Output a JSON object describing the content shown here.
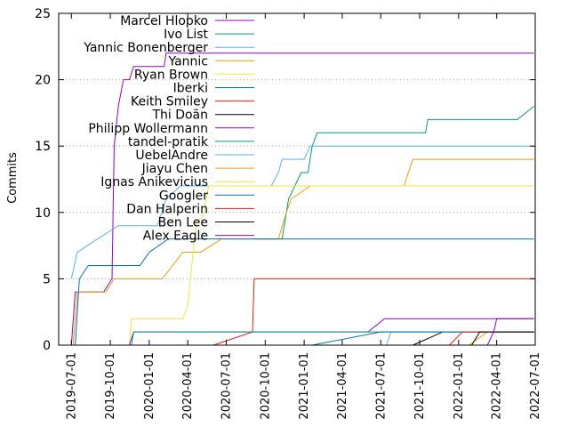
{
  "chart_data": {
    "type": "line",
    "ylabel": "Commits",
    "ylim": [
      0,
      25
    ],
    "yticks": [
      0,
      5,
      10,
      15,
      20,
      25
    ],
    "xlim": [
      "2019-06-01",
      "2022-07-01"
    ],
    "xticks": [
      "2019-07-01",
      "2019-10-01",
      "2020-01-01",
      "2020-04-01",
      "2020-07-01",
      "2020-10-01",
      "2021-01-01",
      "2021-04-01",
      "2021-07-01",
      "2021-10-01",
      "2022-01-01",
      "2022-04-01",
      "2022-07-01"
    ],
    "grid": "y-dotted",
    "legend_position": "top-left",
    "series": [
      {
        "name": "Marcel Hlopko",
        "color": "#9400d3",
        "points": [
          [
            "2019-07-01",
            0
          ],
          [
            "2019-07-10",
            4
          ],
          [
            "2019-09-15",
            4
          ],
          [
            "2019-10-05",
            5
          ],
          [
            "2019-10-10",
            15
          ],
          [
            "2019-10-20",
            18
          ],
          [
            "2019-11-01",
            20
          ],
          [
            "2019-11-15",
            20
          ],
          [
            "2019-11-25",
            21
          ],
          [
            "2020-01-01",
            21
          ],
          [
            "2020-02-05",
            21
          ],
          [
            "2020-02-10",
            22
          ],
          [
            "2022-06-28",
            22
          ]
        ]
      },
      {
        "name": "Ivo List",
        "color": "#009e73",
        "points": [
          [
            "2020-09-05",
            8
          ],
          [
            "2020-11-10",
            8
          ],
          [
            "2020-11-25",
            11
          ],
          [
            "2020-12-10",
            12
          ],
          [
            "2020-12-25",
            13
          ],
          [
            "2021-01-10",
            13
          ],
          [
            "2021-01-20",
            15
          ],
          [
            "2021-02-01",
            16
          ],
          [
            "2021-10-15",
            16
          ],
          [
            "2021-10-20",
            17
          ],
          [
            "2022-05-20",
            17
          ],
          [
            "2022-06-28",
            18
          ]
        ]
      },
      {
        "name": "Yannic Bonenberger",
        "color": "#56b4e9",
        "points": [
          [
            "2019-07-01",
            5
          ],
          [
            "2019-07-15",
            7
          ],
          [
            "2019-09-01",
            8
          ],
          [
            "2019-10-20",
            9
          ],
          [
            "2020-01-20",
            9
          ],
          [
            "2020-02-10",
            11
          ],
          [
            "2020-03-15",
            12
          ],
          [
            "2020-06-01",
            12
          ],
          [
            "2020-10-15",
            12
          ],
          [
            "2020-11-01",
            13
          ],
          [
            "2020-11-10",
            14
          ],
          [
            "2021-01-01",
            14
          ],
          [
            "2021-01-15",
            15
          ],
          [
            "2022-06-28",
            15
          ]
        ]
      },
      {
        "name": "Yannic",
        "color": "#e69f00",
        "points": [
          [
            "2019-07-05",
            0
          ],
          [
            "2019-07-15",
            4
          ],
          [
            "2019-09-20",
            4
          ],
          [
            "2019-10-10",
            5
          ],
          [
            "2020-02-01",
            5
          ],
          [
            "2020-03-20",
            7
          ],
          [
            "2020-05-01",
            7
          ],
          [
            "2020-06-20",
            8
          ],
          [
            "2020-11-01",
            8
          ],
          [
            "2020-11-20",
            10
          ],
          [
            "2020-12-01",
            11
          ],
          [
            "2021-01-15",
            12
          ],
          [
            "2021-08-25",
            12
          ],
          [
            "2021-09-15",
            14
          ],
          [
            "2022-06-28",
            14
          ]
        ]
      },
      {
        "name": "Ryan Brown",
        "color": "#f0e442",
        "points": [
          [
            "2019-11-15",
            0
          ],
          [
            "2019-11-20",
            2
          ],
          [
            "2020-03-20",
            2
          ],
          [
            "2020-04-01",
            3
          ],
          [
            "2020-04-20",
            9
          ],
          [
            "2020-05-10",
            10
          ],
          [
            "2020-05-20",
            12
          ],
          [
            "2022-06-28",
            12
          ]
        ]
      },
      {
        "name": "Iberki",
        "color": "#0072b2",
        "points": [
          [
            "2019-07-10",
            0
          ],
          [
            "2019-07-20",
            5
          ],
          [
            "2019-08-10",
            6
          ],
          [
            "2019-12-10",
            6
          ],
          [
            "2020-01-01",
            7
          ],
          [
            "2020-02-15",
            8
          ],
          [
            "2022-06-28",
            8
          ]
        ]
      },
      {
        "name": "Keith Smiley",
        "color": "#e51e10",
        "points": [
          [
            "2020-06-01",
            0
          ],
          [
            "2020-09-01",
            1
          ],
          [
            "2020-09-05",
            5
          ],
          [
            "2022-06-28",
            5
          ]
        ]
      },
      {
        "name": "Thi Doãn",
        "color": "#000000",
        "points": [
          [
            "2021-09-15",
            0
          ],
          [
            "2021-11-25",
            1
          ],
          [
            "2022-06-28",
            1
          ]
        ]
      },
      {
        "name": "Philipp Wollermann",
        "color": "#9400d3",
        "points": [
          [
            "2019-11-15",
            0
          ],
          [
            "2019-11-25",
            1
          ],
          [
            "2021-06-01",
            1
          ],
          [
            "2021-07-10",
            2
          ],
          [
            "2022-06-28",
            2
          ]
        ]
      },
      {
        "name": "tandel-pratik",
        "color": "#009e73",
        "points": [
          [
            "2019-11-20",
            0
          ],
          [
            "2019-11-25",
            1
          ],
          [
            "2022-06-28",
            1
          ]
        ]
      },
      {
        "name": "UebelAndre",
        "color": "#56b4e9",
        "points": [
          [
            "2021-07-15",
            0
          ],
          [
            "2021-07-25",
            1
          ],
          [
            "2022-06-28",
            1
          ]
        ]
      },
      {
        "name": "Jiayu Chen",
        "color": "#e69f00",
        "points": [
          [
            "2022-01-25",
            0
          ],
          [
            "2022-03-10",
            1
          ],
          [
            "2022-06-28",
            1
          ]
        ]
      },
      {
        "name": "Ignas Anikevicius",
        "color": "#f0e442",
        "points": []
      },
      {
        "name": "Googler",
        "color": "#0072b2",
        "points": [
          [
            "2021-01-20",
            0
          ],
          [
            "2021-07-01",
            1
          ],
          [
            "2022-06-28",
            1
          ]
        ]
      },
      {
        "name": "Dan Halperin",
        "color": "#e51e10",
        "points": [
          [
            "2021-12-10",
            0
          ],
          [
            "2022-01-10",
            1
          ],
          [
            "2022-06-28",
            1
          ]
        ]
      },
      {
        "name": "Ben Lee",
        "color": "#000000",
        "points": [
          [
            "2022-02-01",
            0
          ],
          [
            "2022-02-20",
            1
          ],
          [
            "2022-06-28",
            1
          ]
        ]
      },
      {
        "name": "Alex Eagle",
        "color": "#9400d3",
        "points": [
          [
            "2022-03-10",
            0
          ],
          [
            "2022-03-25",
            1
          ],
          [
            "2022-04-01",
            2
          ],
          [
            "2022-06-28",
            2
          ]
        ]
      }
    ]
  }
}
